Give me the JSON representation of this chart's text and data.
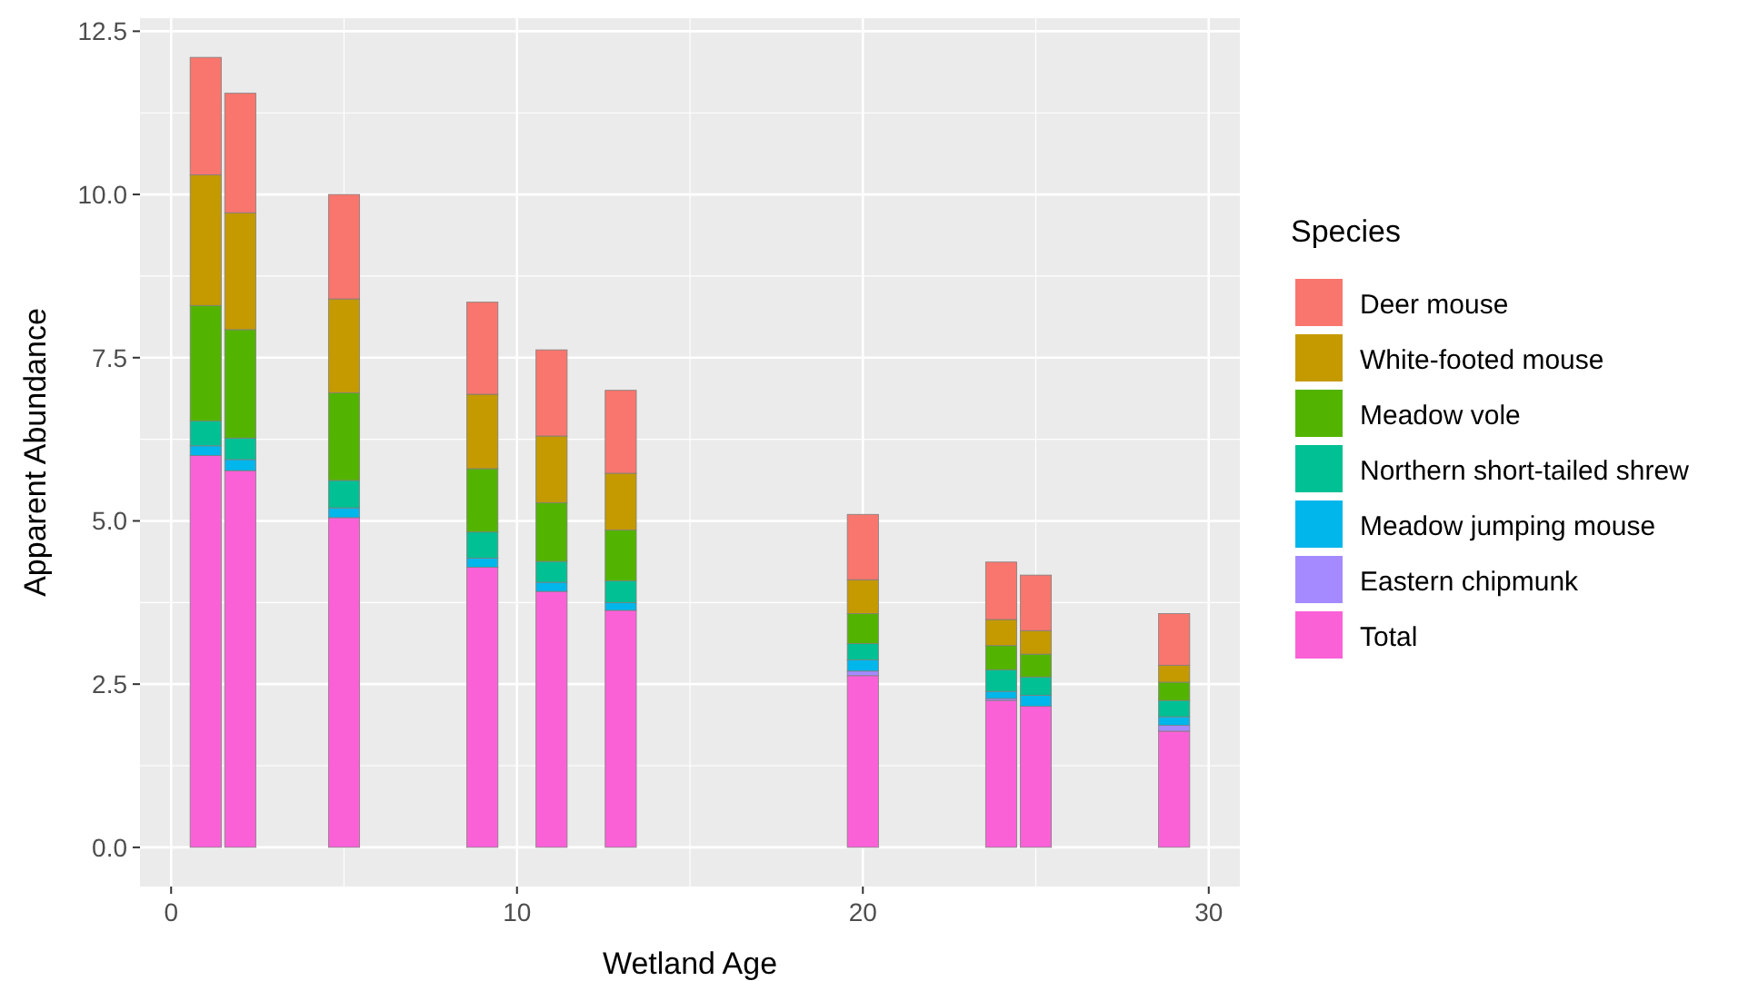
{
  "chart_data": {
    "type": "bar",
    "stacked": true,
    "xlabel": "Wetland Age",
    "ylabel": "Apparent Abundance",
    "legend_title": "Species",
    "legend": "right",
    "grid": true,
    "x": [
      1,
      2,
      5,
      9,
      11,
      13,
      20,
      24,
      25,
      29
    ],
    "xlim": [
      -0.9,
      30.9
    ],
    "xticks": [
      0,
      10,
      20,
      30
    ],
    "ylim": [
      -0.6,
      12.7
    ],
    "yticks": [
      {
        "value": 0,
        "label": "0.0"
      },
      {
        "value": 2.5,
        "label": "2.5"
      },
      {
        "value": 5,
        "label": "5.0"
      },
      {
        "value": 7.5,
        "label": "7.5"
      },
      {
        "value": 10,
        "label": "10.0"
      },
      {
        "value": 12.5,
        "label": "12.5"
      }
    ],
    "series": [
      {
        "name": "Total",
        "color": "#fb61d7",
        "values": [
          6.0,
          5.77,
          5.05,
          4.29,
          3.92,
          3.63,
          2.63,
          2.25,
          2.16,
          1.78
        ]
      },
      {
        "name": "Eastern chipmunk",
        "color": "#a58aff",
        "values": [
          0,
          0,
          0,
          0,
          0,
          0,
          0.07,
          0.03,
          0,
          0.09
        ]
      },
      {
        "name": "Meadow jumping mouse",
        "color": "#00b6eb",
        "values": [
          0.15,
          0.17,
          0.15,
          0.14,
          0.14,
          0.12,
          0.17,
          0.11,
          0.17,
          0.13
        ]
      },
      {
        "name": "Northern short-tailed shrew",
        "color": "#00c094",
        "values": [
          0.38,
          0.33,
          0.42,
          0.4,
          0.32,
          0.33,
          0.25,
          0.33,
          0.28,
          0.25
        ]
      },
      {
        "name": "Meadow vole",
        "color": "#53b400",
        "values": [
          1.77,
          1.66,
          1.34,
          0.97,
          0.9,
          0.78,
          0.46,
          0.37,
          0.35,
          0.28
        ]
      },
      {
        "name": "White-footed mouse",
        "color": "#c49a00",
        "values": [
          2.0,
          1.79,
          1.44,
          1.14,
          1.02,
          0.87,
          0.52,
          0.4,
          0.36,
          0.26
        ]
      },
      {
        "name": "Deer mouse",
        "color": "#f8766d",
        "values": [
          1.8,
          1.83,
          1.6,
          1.41,
          1.32,
          1.27,
          1.0,
          0.88,
          0.85,
          0.79
        ]
      }
    ]
  }
}
